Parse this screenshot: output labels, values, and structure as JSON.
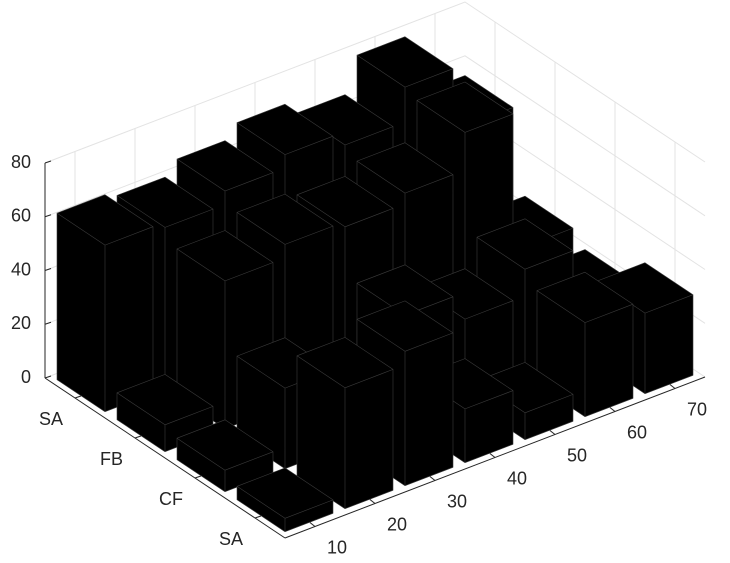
{
  "chart_data": {
    "type": "bar3",
    "categories": [
      "SA",
      "FB",
      "CF",
      "SA"
    ],
    "x": [
      10,
      20,
      30,
      40,
      50,
      60,
      70
    ],
    "values": [
      [
        62,
        60,
        65,
        70,
        65,
        78,
        55
      ],
      [
        10,
        55,
        60,
        58,
        62,
        76,
        25
      ],
      [
        8,
        30,
        15,
        40,
        30,
        40,
        20
      ],
      [
        5,
        45,
        50,
        20,
        10,
        35,
        30
      ]
    ],
    "color": "#000000",
    "xlim": [
      5,
      75
    ],
    "xticks": [
      10,
      20,
      30,
      40,
      50,
      60,
      70
    ],
    "zlim": [
      0,
      80
    ],
    "zticks": [
      0,
      20,
      40,
      60,
      80
    ],
    "grid": true
  }
}
